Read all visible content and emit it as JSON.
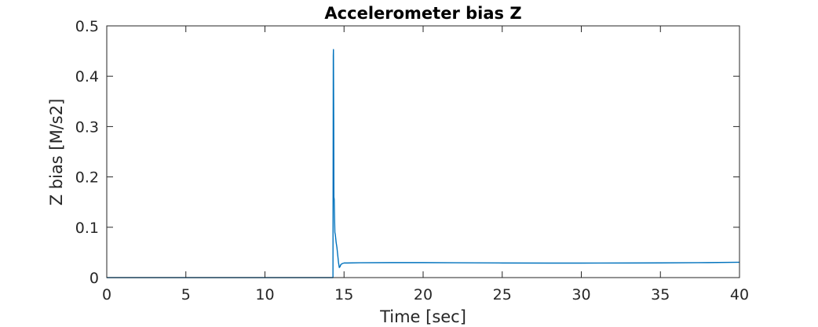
{
  "chart_data": {
    "type": "line",
    "title": "Accelerometer bias Z",
    "xlabel": "Time [sec]",
    "ylabel": "Z bias [M/s2]",
    "xlim": [
      0,
      40
    ],
    "ylim": [
      0,
      0.5
    ],
    "xticks": [
      0,
      5,
      10,
      15,
      20,
      25,
      30,
      35,
      40
    ],
    "yticks": [
      0,
      0.1,
      0.2,
      0.3,
      0.4,
      0.5
    ],
    "xtick_labels": [
      "0",
      "5",
      "10",
      "15",
      "20",
      "25",
      "30",
      "35",
      "40"
    ],
    "ytick_labels": [
      "0",
      "0.1",
      "0.2",
      "0.3",
      "0.4",
      "0.5"
    ],
    "grid": false,
    "box": true,
    "line_color": "#0072bd",
    "series": [
      {
        "x": [
          0,
          14.3,
          14.32,
          14.33,
          14.35,
          14.36,
          14.38,
          14.4,
          14.42,
          14.45,
          14.5,
          14.55,
          14.6,
          14.65,
          14.7,
          14.75,
          14.8,
          14.9,
          15.0,
          15.2,
          16,
          18,
          20,
          22,
          25,
          28,
          30,
          33,
          35,
          38,
          40
        ],
        "y": [
          0,
          0,
          0.44,
          0.453,
          0.3,
          0.16,
          0.155,
          0.12,
          0.09,
          0.085,
          0.07,
          0.06,
          0.045,
          0.03,
          0.02,
          0.022,
          0.026,
          0.028,
          0.029,
          0.029,
          0.0295,
          0.0298,
          0.0298,
          0.0295,
          0.029,
          0.0288,
          0.0288,
          0.029,
          0.0292,
          0.0298,
          0.0305
        ]
      }
    ]
  }
}
